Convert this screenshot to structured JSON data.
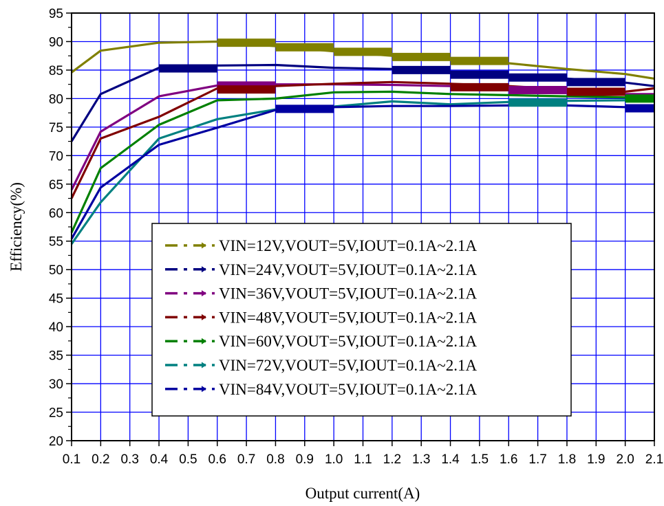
{
  "chart_data": {
    "type": "line",
    "xlabel": "Output current(A)",
    "ylabel": "Efficiency(%)",
    "xlim": [
      0.1,
      2.1
    ],
    "ylim": [
      20,
      95
    ],
    "x_ticks": [
      "0.1",
      "0.2",
      "0.3",
      "0.4",
      "0.5",
      "0.6",
      "0.7",
      "0.8",
      "0.9",
      "1.0",
      "1.1",
      "1.2",
      "1.3",
      "1.4",
      "1.5",
      "1.6",
      "1.7",
      "1.8",
      "1.9",
      "2.0",
      "2.1"
    ],
    "y_ticks": [
      "20",
      "25",
      "30",
      "35",
      "40",
      "45",
      "50",
      "55",
      "60",
      "65",
      "70",
      "75",
      "80",
      "85",
      "90",
      "95"
    ],
    "grid": true,
    "legend_position": "lower-center",
    "x": [
      0.1,
      0.2,
      0.4,
      0.6,
      0.8,
      1.0,
      1.2,
      1.4,
      1.6,
      1.8,
      2.0,
      2.1
    ],
    "series": [
      {
        "name": "VIN=12V,VOUT=5V,IOUT=0.1A~2.1A",
        "color": "#808000",
        "values": [
          84.6,
          88.4,
          89.8,
          90.0,
          89.2,
          88.3,
          87.5,
          86.8,
          86.2,
          85.2,
          84.3,
          83.5
        ]
      },
      {
        "name": "VIN=24V,VOUT=5V,IOUT=0.1A~2.1A",
        "color": "#000080",
        "values": [
          72.5,
          80.8,
          85.4,
          85.8,
          85.9,
          85.4,
          85.2,
          84.5,
          84.0,
          83.5,
          82.8,
          82.2
        ]
      },
      {
        "name": "VIN=36V,VOUT=5V,IOUT=0.1A~2.1A",
        "color": "#800080",
        "values": [
          64.0,
          74.2,
          80.4,
          82.3,
          82.5,
          82.5,
          82.4,
          82.2,
          81.8,
          81.3,
          80.8,
          80.8
        ]
      },
      {
        "name": "VIN=48V,VOUT=5V,IOUT=0.1A~2.1A",
        "color": "#800000",
        "values": [
          62.5,
          73.0,
          76.8,
          81.8,
          82.2,
          82.6,
          82.9,
          82.6,
          82.2,
          81.6,
          81.2,
          81.8
        ]
      },
      {
        "name": "VIN=60V,VOUT=5V,IOUT=0.1A~2.1A",
        "color": "#008000",
        "values": [
          56.5,
          67.8,
          75.4,
          79.7,
          80.0,
          81.1,
          81.2,
          80.8,
          80.6,
          80.4,
          80.2,
          80.1
        ]
      },
      {
        "name": "VIN=72V,VOUT=5V,IOUT=0.1A~2.1A",
        "color": "#008080",
        "values": [
          54.5,
          61.8,
          73.0,
          76.4,
          78.1,
          78.6,
          79.5,
          79.0,
          79.4,
          79.6,
          79.7,
          79.7
        ]
      },
      {
        "name": "VIN=84V,VOUT=5V,IOUT=0.1A~2.1A",
        "color": "#0000A0",
        "values": [
          55.4,
          64.4,
          71.9,
          74.9,
          78.0,
          78.5,
          78.7,
          78.7,
          78.8,
          78.8,
          78.5,
          78.3
        ]
      }
    ],
    "highlights": [
      {
        "series": 0,
        "from": 0.6,
        "to": 0.8,
        "value": 89.8
      },
      {
        "series": 0,
        "from": 0.8,
        "to": 1.0,
        "value": 89.0
      },
      {
        "series": 0,
        "from": 1.0,
        "to": 1.2,
        "value": 88.2
      },
      {
        "series": 0,
        "from": 1.2,
        "to": 1.4,
        "value": 87.3
      },
      {
        "series": 0,
        "from": 1.4,
        "to": 1.6,
        "value": 86.6
      },
      {
        "series": 1,
        "from": 0.4,
        "to": 0.6,
        "value": 85.3
      },
      {
        "series": 1,
        "from": 1.2,
        "to": 1.4,
        "value": 85.0
      },
      {
        "series": 1,
        "from": 1.4,
        "to": 1.6,
        "value": 84.2
      },
      {
        "series": 1,
        "from": 1.6,
        "to": 1.8,
        "value": 83.7
      },
      {
        "series": 1,
        "from": 1.8,
        "to": 2.0,
        "value": 82.9
      },
      {
        "series": 2,
        "from": 0.6,
        "to": 0.8,
        "value": 82.3
      },
      {
        "series": 2,
        "from": 1.6,
        "to": 1.8,
        "value": 81.5
      },
      {
        "series": 3,
        "from": 0.6,
        "to": 0.8,
        "value": 81.6
      },
      {
        "series": 3,
        "from": 1.4,
        "to": 1.6,
        "value": 82.0
      },
      {
        "series": 3,
        "from": 1.8,
        "to": 2.0,
        "value": 81.2
      },
      {
        "series": 4,
        "from": 2.0,
        "to": 2.1,
        "value": 80.0
      },
      {
        "series": 5,
        "from": 1.6,
        "to": 1.8,
        "value": 79.3
      },
      {
        "series": 6,
        "from": 0.8,
        "to": 1.0,
        "value": 78.2
      },
      {
        "series": 6,
        "from": 2.0,
        "to": 2.1,
        "value": 78.3
      }
    ]
  }
}
